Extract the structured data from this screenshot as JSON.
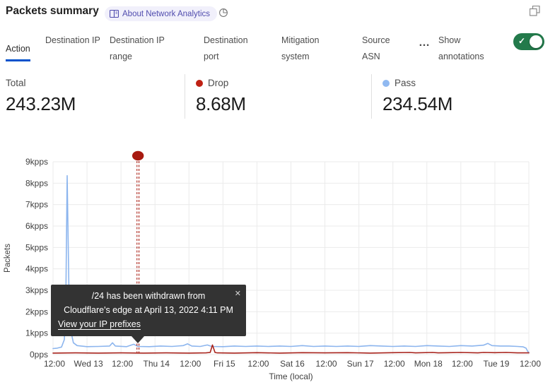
{
  "header": {
    "title": "Packets summary",
    "badge_label": "About Network Analytics"
  },
  "tabs": {
    "items": [
      {
        "label": "Action",
        "active": true
      },
      {
        "label": "Destination IP",
        "active": false
      },
      {
        "label": "Destination IP range",
        "active": false
      },
      {
        "label": "Destination port",
        "active": false
      },
      {
        "label": "Mitigation system",
        "active": false
      },
      {
        "label": "Source ASN",
        "active": false
      }
    ],
    "more_label": "…",
    "annotations_label": "Show annotations",
    "annotations_on": true
  },
  "colors": {
    "accent_blue": "#0052cc",
    "toggle_green": "#237a4b",
    "drop_red": "#bf2114",
    "pass_blue": "#90b9f1",
    "badge_purple": "#504cae"
  },
  "stats": {
    "columns": [
      {
        "label": "Total",
        "value": "243.23M",
        "dot_color": ""
      },
      {
        "label": "Drop",
        "value": "8.68M",
        "dot_color": "#bf2114"
      },
      {
        "label": "Pass",
        "value": "234.54M",
        "dot_color": "#90b9f1"
      }
    ]
  },
  "tooltip": {
    "line1": "/24 has been withdrawn from",
    "line2": "Cloudflare's edge at April 13, 2022 4:11 PM",
    "link": "View your IP prefixes",
    "close": "✕"
  },
  "chart_data": {
    "type": "line",
    "title": "Packets summary",
    "xlabel": "Time (local)",
    "ylabel": "Packets",
    "x_unit": "hours from start (Apr 12 12:00 local)",
    "x_range_hours": [
      0,
      168
    ],
    "x_tick_every_hours": 12,
    "x_tick_labels": [
      "12:00",
      "Wed 13",
      "12:00",
      "Thu 14",
      "12:00",
      "Fri 15",
      "12:00",
      "Sat 16",
      "12:00",
      "Sun 17",
      "12:00",
      "Mon 18",
      "12:00",
      "Tue 19",
      "12:00"
    ],
    "y_tick_labels": [
      "0pps",
      "1kpps",
      "2kpps",
      "3kpps",
      "4kpps",
      "5kpps",
      "6kpps",
      "7kpps",
      "8kpps",
      "9kpps"
    ],
    "ylim_kpps": [
      0,
      9
    ],
    "grid": true,
    "legend_position": "top-stats-row",
    "series": [
      {
        "name": "Pass",
        "color": "#8cb5ee",
        "points": [
          [
            0,
            0.28
          ],
          [
            1.5,
            0.3
          ],
          [
            3,
            0.35
          ],
          [
            4,
            0.7
          ],
          [
            4.5,
            2.2
          ],
          [
            5,
            8.35
          ],
          [
            5.6,
            3.2
          ],
          [
            6.3,
            1.1
          ],
          [
            7.2,
            0.55
          ],
          [
            8.5,
            0.42
          ],
          [
            12,
            0.37
          ],
          [
            16,
            0.38
          ],
          [
            20,
            0.4
          ],
          [
            21,
            0.55
          ],
          [
            22,
            0.4
          ],
          [
            26,
            0.37
          ],
          [
            28.5,
            0.48
          ],
          [
            30,
            0.38
          ],
          [
            34,
            0.37
          ],
          [
            38,
            0.4
          ],
          [
            42,
            0.38
          ],
          [
            46,
            0.42
          ],
          [
            47.5,
            0.5
          ],
          [
            49,
            0.4
          ],
          [
            52,
            0.38
          ],
          [
            54.5,
            0.45
          ],
          [
            56,
            0.38
          ],
          [
            60,
            0.37
          ],
          [
            64,
            0.4
          ],
          [
            68,
            0.38
          ],
          [
            72,
            0.4
          ],
          [
            76,
            0.38
          ],
          [
            80,
            0.4
          ],
          [
            84,
            0.38
          ],
          [
            88,
            0.42
          ],
          [
            92,
            0.38
          ],
          [
            96,
            0.4
          ],
          [
            100,
            0.38
          ],
          [
            104,
            0.4
          ],
          [
            108,
            0.38
          ],
          [
            112,
            0.42
          ],
          [
            116,
            0.4
          ],
          [
            120,
            0.38
          ],
          [
            124,
            0.4
          ],
          [
            128,
            0.38
          ],
          [
            132,
            0.42
          ],
          [
            136,
            0.4
          ],
          [
            140,
            0.38
          ],
          [
            144,
            0.42
          ],
          [
            148,
            0.4
          ],
          [
            152,
            0.44
          ],
          [
            153.5,
            0.52
          ],
          [
            155,
            0.42
          ],
          [
            158,
            0.4
          ],
          [
            161,
            0.4
          ],
          [
            164,
            0.38
          ],
          [
            166,
            0.36
          ],
          [
            167,
            0.3
          ],
          [
            167.6,
            0.15
          ],
          [
            168,
            0.1
          ]
        ]
      },
      {
        "name": "Drop",
        "color": "#a8241d",
        "points": [
          [
            0,
            0.07
          ],
          [
            8,
            0.08
          ],
          [
            16,
            0.07
          ],
          [
            24,
            0.08
          ],
          [
            32,
            0.07
          ],
          [
            40,
            0.08
          ],
          [
            48,
            0.07
          ],
          [
            54,
            0.08
          ],
          [
            55.5,
            0.1
          ],
          [
            56.3,
            0.45
          ],
          [
            57.2,
            0.1
          ],
          [
            58,
            0.08
          ],
          [
            64,
            0.07
          ],
          [
            72,
            0.09
          ],
          [
            80,
            0.07
          ],
          [
            88,
            0.09
          ],
          [
            96,
            0.08
          ],
          [
            104,
            0.09
          ],
          [
            112,
            0.07
          ],
          [
            120,
            0.09
          ],
          [
            126,
            0.1
          ],
          [
            128,
            0.08
          ],
          [
            134,
            0.1
          ],
          [
            136,
            0.08
          ],
          [
            144,
            0.1
          ],
          [
            150,
            0.08
          ],
          [
            152,
            0.1
          ],
          [
            156,
            0.09
          ],
          [
            160,
            0.1
          ],
          [
            164,
            0.08
          ],
          [
            168,
            0.08
          ]
        ]
      }
    ],
    "annotation": {
      "x_hours": 30,
      "color": "#a81a10",
      "style": "double dashed vertical line with dot marker above plot",
      "text": "/24 has been withdrawn from Cloudflare's edge at April 13, 2022 4:11 PM",
      "link": "View your IP prefixes"
    }
  }
}
